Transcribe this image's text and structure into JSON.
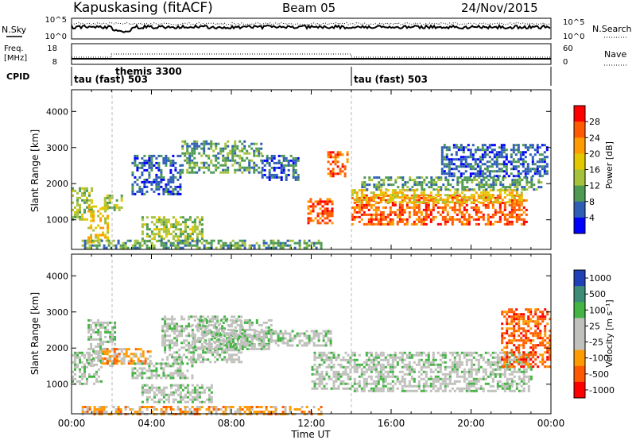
{
  "header": {
    "site": "Kapuskasing (fitACF)",
    "beam": "Beam 05",
    "date": "24/Nov/2015"
  },
  "strips": {
    "nsky_label": "N.Sky",
    "nsky_ticks": [
      "10^5",
      "10^0"
    ],
    "nsearch_label": "N.Search",
    "nsearch_ticks": [
      "10^5",
      "10^0"
    ],
    "freq_label_1": "Freq.",
    "freq_label_2": "[MHz]",
    "freq_ticks": [
      "18",
      "8"
    ],
    "nave_label": "Nave",
    "nave_ticks": [
      "60",
      "0"
    ],
    "cpid_label": "CPID",
    "cpid_segments": [
      {
        "label": "tau (fast) 503",
        "start_hour": 0
      },
      {
        "label": "themis 3300",
        "start_hour": 2
      },
      {
        "label": "tau (fast) 503",
        "start_hour": 14
      }
    ]
  },
  "chart_data": [
    {
      "type": "heatmap",
      "panel": "power",
      "title": "",
      "xlabel": "Time UT",
      "ylabel": "Slant Range [km]",
      "x_ticks": [
        "00:00",
        "04:00",
        "08:00",
        "12:00",
        "16:00",
        "20:00",
        "00:00"
      ],
      "xlim_hours": [
        0,
        24
      ],
      "ylim_km": [
        180,
        4600
      ],
      "y_ticks": [
        1000,
        2000,
        3000,
        4000
      ],
      "colorbar_label": "Power [dB]",
      "colorbar_ticks": [
        "28",
        "24",
        "20",
        "16",
        "12",
        "8",
        "4"
      ],
      "colorbar_colors": [
        "#ff0000",
        "#ff5a00",
        "#ff9b00",
        "#e3c800",
        "#a6c23c",
        "#4e9a54",
        "#2e5fb4",
        "#0000ff"
      ],
      "regions": [
        {
          "t": [
            0.0,
            1.0
          ],
          "r": [
            1000,
            1900
          ],
          "level": 4
        },
        {
          "t": [
            0.8,
            1.8
          ],
          "r": [
            400,
            1400
          ],
          "level": 3
        },
        {
          "t": [
            1.5,
            2.5
          ],
          "r": [
            1300,
            1700
          ],
          "level": 4
        },
        {
          "t": [
            3.0,
            5.5
          ],
          "r": [
            1700,
            2800
          ],
          "level": 6
        },
        {
          "t": [
            5.5,
            9.5
          ],
          "r": [
            2300,
            3200
          ],
          "level": 5
        },
        {
          "t": [
            9.5,
            11.3
          ],
          "r": [
            2100,
            2800
          ],
          "level": 6
        },
        {
          "t": [
            11.8,
            13.0
          ],
          "r": [
            900,
            1600
          ],
          "level": 1
        },
        {
          "t": [
            12.8,
            13.8
          ],
          "r": [
            2200,
            2900
          ],
          "level": 1
        },
        {
          "t": [
            3.5,
            6.5
          ],
          "r": [
            400,
            1100
          ],
          "level": 4
        },
        {
          "t": [
            0.5,
            12.5
          ],
          "r": [
            200,
            450
          ],
          "level": 5
        },
        {
          "t": [
            14.0,
            22.8
          ],
          "r": [
            900,
            1700
          ],
          "level": 1
        },
        {
          "t": [
            14.0,
            22.5
          ],
          "r": [
            1500,
            1850
          ],
          "level": 3
        },
        {
          "t": [
            14.5,
            23.5
          ],
          "r": [
            1850,
            2200
          ],
          "level": 5
        },
        {
          "t": [
            18.5,
            23.8
          ],
          "r": [
            2200,
            3100
          ],
          "level": 6
        }
      ]
    },
    {
      "type": "heatmap",
      "panel": "velocity",
      "title": "",
      "xlabel": "Time UT",
      "ylabel": "Slant Range [km]",
      "x_ticks": [
        "00:00",
        "04:00",
        "08:00",
        "12:00",
        "16:00",
        "20:00",
        "00:00"
      ],
      "xlim_hours": [
        0,
        24
      ],
      "ylim_km": [
        180,
        4600
      ],
      "y_ticks": [
        1000,
        2000,
        3000,
        4000
      ],
      "colorbar_label": "Velocity [m s⁻¹]",
      "colorbar_ticks": [
        "1000",
        "500",
        "100",
        "25",
        "-25",
        "-100",
        "-500",
        "-1000"
      ],
      "colorbar_colors": [
        "#2040b8",
        "#3c8c78",
        "#44b444",
        "#c0c0bc",
        "#c0c0bc",
        "#ff9b00",
        "#ff5a00",
        "#ff0000"
      ],
      "regions": [
        {
          "t": [
            0.0,
            1.5
          ],
          "r": [
            1000,
            1900
          ],
          "level": 3
        },
        {
          "t": [
            0.8,
            2.2
          ],
          "r": [
            1500,
            2800
          ],
          "level": 3
        },
        {
          "t": [
            1.5,
            4.0
          ],
          "r": [
            1600,
            2000
          ],
          "level": 5
        },
        {
          "t": [
            3.0,
            6.0
          ],
          "r": [
            1200,
            1600
          ],
          "level": 3
        },
        {
          "t": [
            4.5,
            8.5
          ],
          "r": [
            1600,
            2900
          ],
          "level": 3
        },
        {
          "t": [
            6.0,
            10.0
          ],
          "r": [
            2000,
            2800
          ],
          "level": 3
        },
        {
          "t": [
            8.5,
            13.0
          ],
          "r": [
            2100,
            2500
          ],
          "level": 3
        },
        {
          "t": [
            3.5,
            7.0
          ],
          "r": [
            500,
            1000
          ],
          "level": 3
        },
        {
          "t": [
            0.5,
            12.5
          ],
          "r": [
            200,
            400
          ],
          "level": 5
        },
        {
          "t": [
            12.0,
            14.0
          ],
          "r": [
            900,
            1900
          ],
          "level": 3
        },
        {
          "t": [
            14.0,
            23.0
          ],
          "r": [
            800,
            1900
          ],
          "level": 3
        },
        {
          "t": [
            21.5,
            24.0
          ],
          "r": [
            1500,
            3100
          ],
          "level": 6
        }
      ]
    }
  ]
}
